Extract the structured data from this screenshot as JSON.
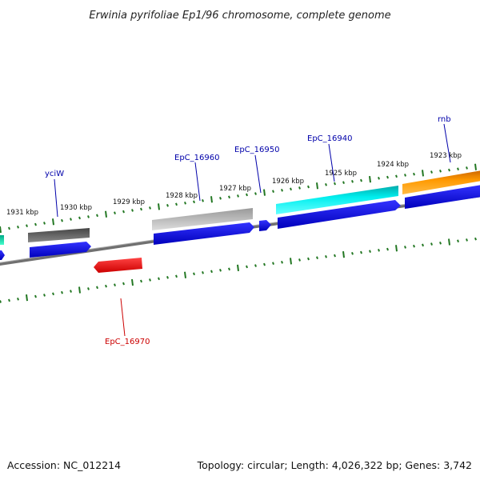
{
  "title": "Erwinia pyrifoliae Ep1/96 chromosome, complete genome",
  "accession": "Accession: NC_012214",
  "summary": "Topology: circular; Length: 4,026,322 bp; Genes: 3,742",
  "kbp_labels": [
    "1931 kbp",
    "1930 kbp",
    "1929 kbp",
    "1928 kbp",
    "1927 kbp",
    "1926 kbp",
    "1925 kbp",
    "1924 kbp",
    "1923 kbp"
  ],
  "gene_labels": {
    "yciW": "yciW",
    "EpC_16960": "EpC_16960",
    "EpC_16950": "EpC_16950",
    "EpC_16940": "EpC_16940",
    "rnb": "rnb",
    "EpC_16970": "EpC_16970"
  },
  "colors": {
    "cds_blue": "#0000dd",
    "label_blue": "#0000aa",
    "label_red": "#cc0000",
    "tick_green": "#227722",
    "backbone": "#808080",
    "gene_red": "#ee1111",
    "gene_orange": "#ff9900",
    "gene_cyan": "#00eeee",
    "gene_darkgray": "#666666",
    "gene_lightgray": "#bbbbbb"
  }
}
